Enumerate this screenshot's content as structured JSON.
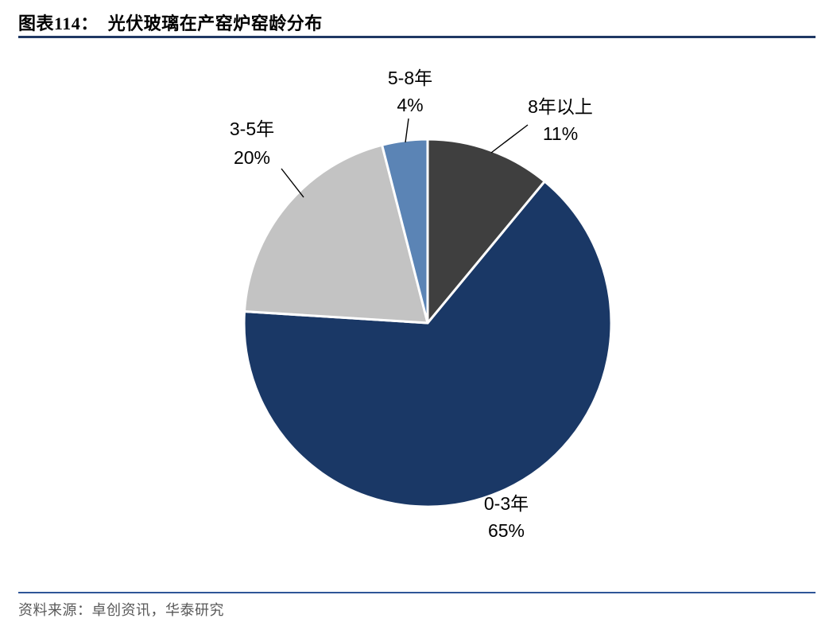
{
  "header": {
    "title": "图表114：  光伏玻璃在产窑炉窑龄分布"
  },
  "footer": {
    "source": "资料来源：卓创资讯，华泰研究"
  },
  "style": {
    "title_rule_color": "#1F3864",
    "footer_rule_color": "#2F5597",
    "source_text_color": "#595959",
    "label_text_color": "#000000"
  },
  "chart_data": {
    "type": "pie",
    "title": "光伏玻璃在产窑炉窑龄分布",
    "categories": [
      "0-3年",
      "3-5年",
      "5-8年",
      "8年以上"
    ],
    "values": [
      65,
      20,
      4,
      11
    ],
    "unit": "%",
    "legend": "none",
    "grid": "off",
    "start_angle_deg": 39.6,
    "slices": [
      {
        "name": "0-3年",
        "value": 65,
        "pct_label": "65%",
        "color": "#1A3866"
      },
      {
        "name": "3-5年",
        "value": 20,
        "pct_label": "20%",
        "color": "#C3C3C3"
      },
      {
        "name": "5-8年",
        "value": 4,
        "pct_label": "4%",
        "color": "#5B84B5"
      },
      {
        "name": "8年以上",
        "value": 11,
        "pct_label": "11%",
        "color": "#3F3F3F"
      }
    ]
  }
}
